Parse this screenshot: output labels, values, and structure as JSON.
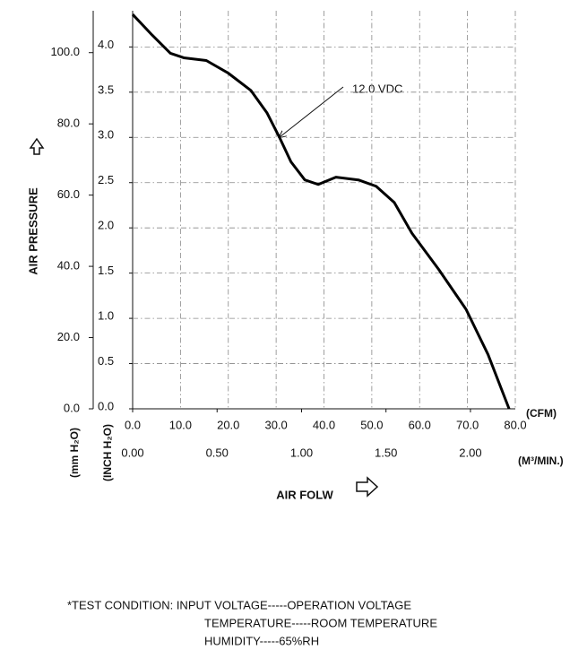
{
  "chart_data": {
    "type": "line",
    "y_label": "AIR PRESSURE",
    "y2_label": "(mm H₂O)",
    "y1_unit": "(INCH H₂O)",
    "x_label": "AIR FOLW",
    "x_unit": "(CFM)",
    "x2_unit": "(M³/MIN.)",
    "x": [
      0,
      4.1,
      7.9,
      10.7,
      15.4,
      20,
      24.7,
      28.1,
      30.7,
      33.1,
      36,
      38.8,
      42.5,
      47.2,
      50.9,
      54.7,
      58.4,
      64,
      69.7,
      74.3,
      78.7
    ],
    "series": [
      {
        "name": "12.0 VDC",
        "color": "#000000",
        "values": [
          4.36,
          4.13,
          3.93,
          3.88,
          3.85,
          3.71,
          3.52,
          3.27,
          3.0,
          2.73,
          2.53,
          2.48,
          2.56,
          2.53,
          2.46,
          2.28,
          1.94,
          1.54,
          1.1,
          0.6,
          0
        ]
      }
    ],
    "xlim": [
      0,
      80
    ],
    "xticks": [
      {
        "value": 0,
        "label": "0.0"
      },
      {
        "value": 10,
        "label": "10.0"
      },
      {
        "value": 20,
        "label": "20.0"
      },
      {
        "value": 30,
        "label": "30.0"
      },
      {
        "value": 40,
        "label": "40.0"
      },
      {
        "value": 50,
        "label": "50.0"
      },
      {
        "value": 60,
        "label": "60.0"
      },
      {
        "value": 70,
        "label": "70.0"
      },
      {
        "value": 80,
        "label": "80.0"
      }
    ],
    "x2lim": [
      0,
      2.2656
    ],
    "x2ticks": [
      {
        "value": 0,
        "label": "0.00"
      },
      {
        "value": 0.5,
        "label": "0.50"
      },
      {
        "value": 1,
        "label": "1.00"
      },
      {
        "value": 1.5,
        "label": "1.50"
      },
      {
        "value": 2,
        "label": "2.00"
      }
    ],
    "ylim": [
      0,
      4.4
    ],
    "yticks": [
      {
        "value": 0,
        "label": "0.0"
      },
      {
        "value": 0.5,
        "label": "0.5"
      },
      {
        "value": 1,
        "label": "1.0"
      },
      {
        "value": 1.5,
        "label": "1.5"
      },
      {
        "value": 2,
        "label": "2.0"
      },
      {
        "value": 2.5,
        "label": "2.5"
      },
      {
        "value": 3,
        "label": "3.0"
      },
      {
        "value": 3.5,
        "label": "3.5"
      },
      {
        "value": 4,
        "label": "4.0"
      }
    ],
    "y2lim": [
      0,
      111.76
    ],
    "y2ticks": [
      {
        "value": 0,
        "label": "0.0"
      },
      {
        "value": 20,
        "label": "20.0"
      },
      {
        "value": 40,
        "label": "40.0"
      },
      {
        "value": 60,
        "label": "60.0"
      },
      {
        "value": 80,
        "label": "80.0"
      },
      {
        "value": 100,
        "label": "100.0"
      }
    ],
    "grid": true,
    "notes": [
      "*TEST CONDITION: INPUT VOLTAGE-----OPERATION VOLTAGE",
      "TEMPERATURE-----ROOM TEMPERATURE",
      "HUMIDITY-----65%RH"
    ]
  }
}
